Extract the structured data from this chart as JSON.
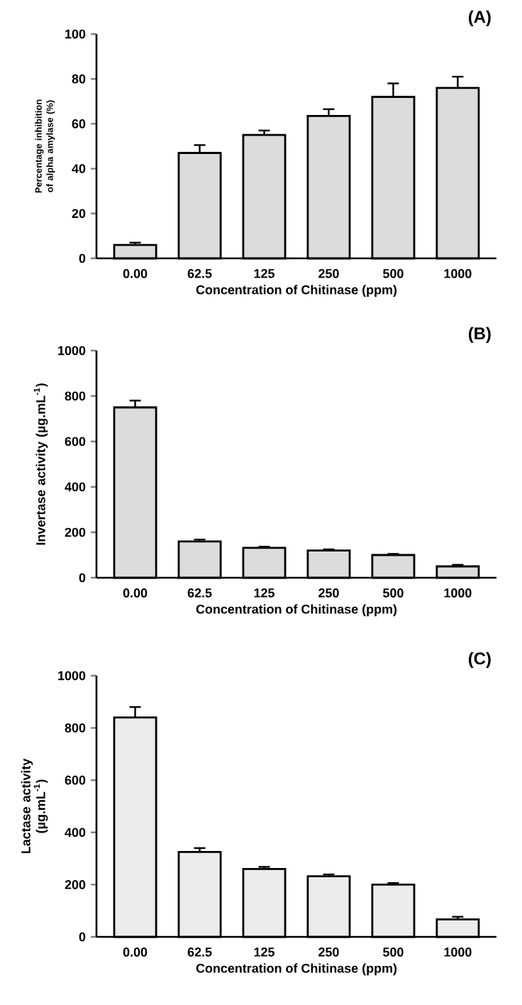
{
  "chart_data": [
    {
      "type": "bar",
      "title": "(A)",
      "xlabel": "Concentration of Chitinase (ppm)",
      "ylabel": "Percentage inhibition of alpha amylase (%)",
      "categories": [
        "0.00",
        "62.5",
        "125",
        "250",
        "500",
        "1000"
      ],
      "color": "#dcdcdc",
      "values": [
        6,
        47,
        55,
        63.5,
        72,
        76
      ],
      "errors": [
        1,
        3.5,
        2,
        3,
        6,
        5
      ],
      "ylim": [
        0,
        100
      ],
      "yticks": [
        0,
        20,
        40,
        60,
        80,
        100
      ]
    },
    {
      "type": "bar",
      "title": "(B)",
      "xlabel": "Concentration of Chitinase (ppm)",
      "ylabel": "Invertase activity (µg.mL$^{-1}$)",
      "categories": [
        "0.00",
        "62.5",
        "125",
        "250",
        "500",
        "1000"
      ],
      "color": "#dcdcdc",
      "values": [
        750,
        160,
        132,
        120,
        100,
        50
      ],
      "errors": [
        30,
        8,
        5,
        5,
        5,
        7
      ],
      "ylim": [
        0,
        1000
      ],
      "yticks": [
        0,
        200,
        400,
        600,
        800,
        1000
      ]
    },
    {
      "type": "bar",
      "title": "(C)",
      "xlabel": "Concentration of Chitinase (ppm)",
      "ylabel": "Lactase activity (µg.mL$^{-1}$)",
      "categories": [
        "0.00",
        "62.5",
        "125",
        "250",
        "500",
        "1000"
      ],
      "color": "#ececec",
      "values": [
        840,
        325,
        260,
        232,
        200,
        67
      ],
      "errors": [
        40,
        15,
        8,
        7,
        6,
        10
      ],
      "ylim": [
        0,
        1000
      ],
      "yticks": [
        0,
        200,
        400,
        600,
        800,
        1000
      ]
    }
  ]
}
